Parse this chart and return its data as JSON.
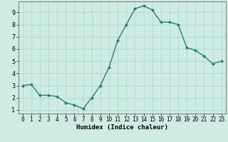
{
  "x": [
    0,
    1,
    2,
    3,
    4,
    5,
    6,
    7,
    8,
    9,
    10,
    11,
    12,
    13,
    14,
    15,
    16,
    17,
    18,
    19,
    20,
    21,
    22,
    23
  ],
  "y": [
    3.0,
    3.1,
    2.2,
    2.2,
    2.1,
    1.6,
    1.4,
    1.1,
    2.0,
    3.0,
    4.5,
    6.7,
    8.0,
    9.3,
    9.55,
    9.2,
    8.2,
    8.2,
    8.0,
    6.1,
    5.9,
    5.4,
    4.8,
    5.0
  ],
  "xlabel": "Humidex (Indice chaleur)",
  "xlim": [
    -0.5,
    23.5
  ],
  "ylim": [
    0.7,
    9.9
  ],
  "yticks": [
    1,
    2,
    3,
    4,
    5,
    6,
    7,
    8,
    9
  ],
  "xticks": [
    0,
    1,
    2,
    3,
    4,
    5,
    6,
    7,
    8,
    9,
    10,
    11,
    12,
    13,
    14,
    15,
    16,
    17,
    18,
    19,
    20,
    21,
    22,
    23
  ],
  "line_color": "#2e7d6e",
  "marker_color": "#2e7d6e",
  "bg_color": "#ceeae4",
  "grid_color": "#b0d8d0",
  "fig_bg": "#ceeae4"
}
